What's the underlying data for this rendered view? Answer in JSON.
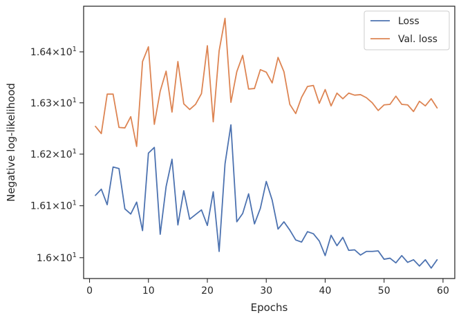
{
  "chart_data": {
    "type": "line",
    "xlabel": "Epochs",
    "ylabel": "Negative log-likelihood",
    "xlim": [
      -1,
      62
    ],
    "ylim": [
      15.96,
      16.49
    ],
    "yscale": "log",
    "x_ticks": [
      0,
      10,
      20,
      30,
      40,
      50,
      60
    ],
    "y_ticks": [
      {
        "value": 16.0,
        "base": "1.6",
        "exp": "1"
      },
      {
        "value": 16.1,
        "base": "1.61",
        "exp": "1"
      },
      {
        "value": 16.2,
        "base": "1.62",
        "exp": "1"
      },
      {
        "value": 16.3,
        "base": "1.63",
        "exp": "1"
      },
      {
        "value": 16.4,
        "base": "1.64",
        "exp": "1"
      }
    ],
    "times_sign": "×",
    "y_tick_power_base": "10",
    "legend": {
      "position": "top-right"
    },
    "grid": false,
    "x": [
      1,
      2,
      3,
      4,
      5,
      6,
      7,
      8,
      9,
      10,
      11,
      12,
      13,
      14,
      15,
      16,
      17,
      18,
      19,
      20,
      21,
      22,
      23,
      24,
      25,
      26,
      27,
      28,
      29,
      30,
      31,
      32,
      33,
      34,
      35,
      36,
      37,
      38,
      39,
      40,
      41,
      42,
      43,
      44,
      45,
      46,
      47,
      48,
      49,
      50,
      51,
      52,
      53,
      54,
      55,
      56,
      57,
      58,
      59
    ],
    "series": [
      {
        "name": "Loss",
        "color": "#4c72b0",
        "values": [
          16.12,
          16.132,
          16.102,
          16.175,
          16.172,
          16.094,
          16.084,
          16.107,
          16.052,
          16.202,
          16.213,
          16.045,
          16.137,
          16.19,
          16.063,
          16.129,
          16.074,
          16.083,
          16.092,
          16.062,
          16.127,
          16.012,
          16.181,
          16.257,
          16.069,
          16.085,
          16.123,
          16.065,
          16.095,
          16.147,
          16.111,
          16.055,
          16.069,
          16.053,
          16.034,
          16.03,
          16.05,
          16.046,
          16.032,
          16.004,
          16.043,
          16.023,
          16.039,
          16.014,
          16.015,
          16.005,
          16.012,
          16.012,
          16.013,
          15.997,
          15.999,
          15.99,
          16.004,
          15.991,
          15.996,
          15.984,
          15.996,
          15.98,
          15.996
        ]
      },
      {
        "name": "Val. loss",
        "color": "#dd8452",
        "values": [
          16.254,
          16.24,
          16.317,
          16.317,
          16.252,
          16.251,
          16.273,
          16.215,
          16.381,
          16.41,
          16.258,
          16.323,
          16.362,
          16.282,
          16.381,
          16.298,
          16.287,
          16.297,
          16.318,
          16.412,
          16.263,
          16.402,
          16.466,
          16.301,
          16.361,
          16.393,
          16.327,
          16.328,
          16.365,
          16.36,
          16.339,
          16.389,
          16.361,
          16.297,
          16.279,
          16.311,
          16.332,
          16.334,
          16.299,
          16.326,
          16.294,
          16.319,
          16.308,
          16.319,
          16.315,
          16.316,
          16.31,
          16.3,
          16.285,
          16.296,
          16.297,
          16.313,
          16.297,
          16.296,
          16.283,
          16.303,
          16.294,
          16.308,
          16.29
        ]
      }
    ]
  }
}
